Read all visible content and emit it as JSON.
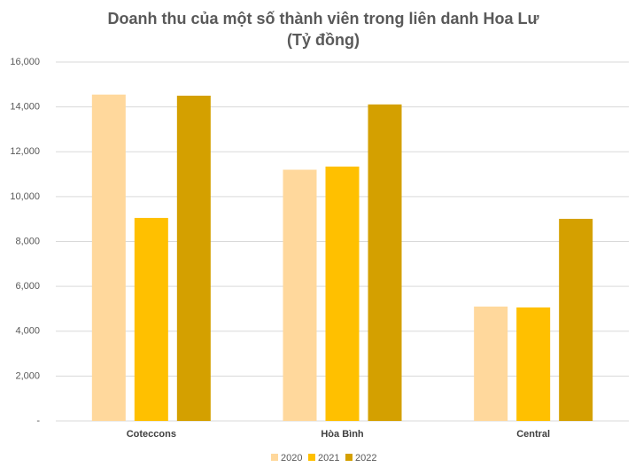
{
  "chart_data": {
    "type": "bar",
    "title": "Doanh thu của một số thành viên trong liên danh Hoa Lư",
    "subtitle": "(Tỷ đồng)",
    "categories": [
      "Coteccons",
      "Hòa Bình",
      "Central"
    ],
    "series": [
      {
        "name": "2020",
        "color": "#ffd89c",
        "values": [
          14550,
          11200,
          5100
        ]
      },
      {
        "name": "2021",
        "color": "#ffc000",
        "values": [
          9050,
          11340,
          5060
        ]
      },
      {
        "name": "2022",
        "color": "#d4a000",
        "values": [
          14500,
          14110,
          9010
        ]
      }
    ],
    "ylim": [
      0,
      16000
    ],
    "yticks": [
      {
        "value": 0,
        "label": "-"
      },
      {
        "value": 2000,
        "label": "2,000"
      },
      {
        "value": 4000,
        "label": "4,000"
      },
      {
        "value": 6000,
        "label": "6,000"
      },
      {
        "value": 8000,
        "label": "8,000"
      },
      {
        "value": 10000,
        "label": "10,000"
      },
      {
        "value": 12000,
        "label": "12,000"
      },
      {
        "value": 14000,
        "label": "14,000"
      },
      {
        "value": 16000,
        "label": "16,000"
      }
    ],
    "grid": true,
    "legend": "bottom"
  }
}
